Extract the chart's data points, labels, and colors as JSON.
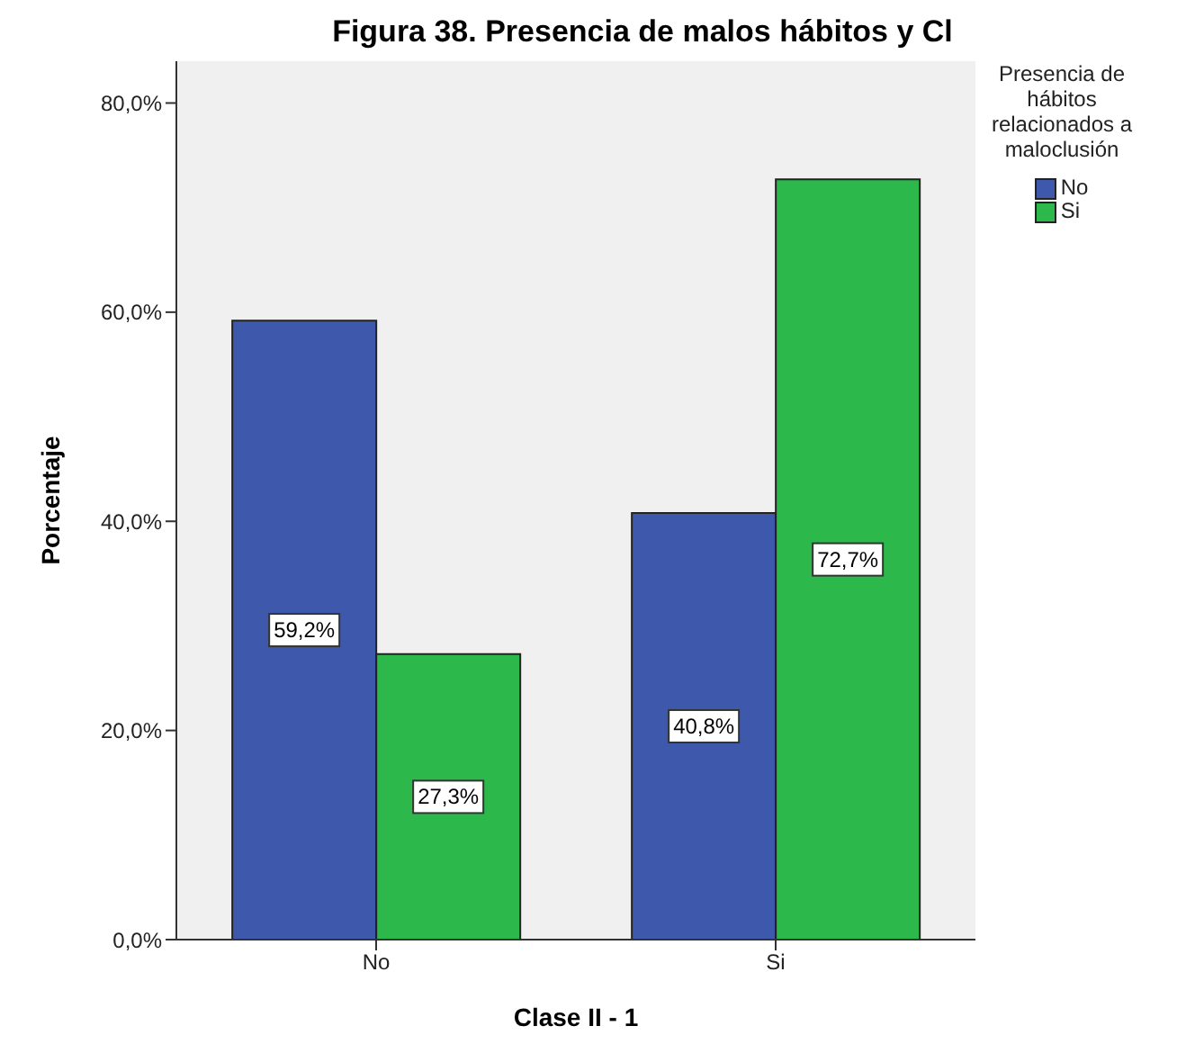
{
  "chart_data": {
    "type": "bar",
    "title": "Figura 38. Presencia de malos hábitos y Cl",
    "xlabel": "Clase II - 1",
    "ylabel": "Porcentaje",
    "legend_title": "Presencia de hábitos relacionados a maloclusión",
    "categories": [
      "No",
      "Si"
    ],
    "series": [
      {
        "name": "No",
        "color": "#3e58ac",
        "values": [
          59.2,
          40.8
        ],
        "value_labels": [
          "59,2%",
          "40,8%"
        ]
      },
      {
        "name": "Si",
        "color": "#2db84c",
        "values": [
          27.3,
          72.7
        ],
        "value_labels": [
          "27,3%",
          "72,7%"
        ]
      }
    ],
    "ylim": [
      0,
      84
    ],
    "yticks": [
      {
        "value": 0,
        "label": "0,0%"
      },
      {
        "value": 20,
        "label": "20,0%"
      },
      {
        "value": 40,
        "label": "40,0%"
      },
      {
        "value": 60,
        "label": "60,0%"
      },
      {
        "value": 80,
        "label": "80,0%"
      }
    ],
    "grid": false,
    "legend": "top right"
  }
}
